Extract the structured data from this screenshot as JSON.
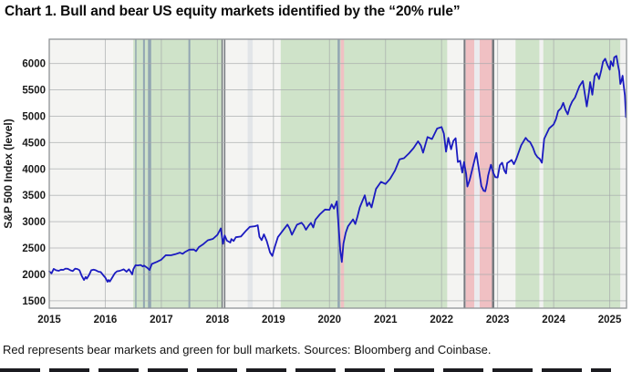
{
  "header": {
    "title": "Chart 1. Bull and bear US equity markets identified by the “20% rule”"
  },
  "footer": {
    "caption": "Red represents bear markets and green for bull markets. Sources: Bloomberg and Coinbase."
  },
  "chart_data": {
    "type": "line",
    "title": "Chart 1. Bull and bear US equity markets identified by the “20% rule”",
    "xlabel": "",
    "ylabel": "S&P 500 Index (level)",
    "x_ticks": [
      2015,
      2016,
      2017,
      2018,
      2019,
      2020,
      2021,
      2022,
      2023,
      2024,
      2025
    ],
    "y_ticks": [
      1500,
      2000,
      2500,
      3000,
      3500,
      4000,
      4500,
      5000,
      5500,
      6000
    ],
    "xlim": [
      2015,
      2025.3
    ],
    "ylim": [
      1360,
      6460
    ],
    "grid": true,
    "legend": "none",
    "colors": {
      "bull_band": "#cfe3c9",
      "bear_band": "#f0c0c3",
      "plot_background": "#f4f4f2",
      "grid_line": "#a3a7a9",
      "border": "#8f9396",
      "series_line": "#1b1bc0",
      "bluegrey_line": "#8296ad",
      "dark_line": "#5f646b"
    },
    "regions": {
      "bull_label": "bull market (green)",
      "bear_label": "bear market (red)",
      "bull": [
        [
          2016.5,
          2018.08
        ],
        [
          2019.13,
          2022.1
        ],
        [
          2023.32,
          2025.19
        ]
      ],
      "bear": [
        [
          2020.2,
          2020.26
        ],
        [
          2022.43,
          2022.585
        ],
        [
          2022.68,
          2022.9
        ]
      ]
    },
    "overlays": {
      "grey_bands": [
        {
          "x": [
            2018.54,
            2018.63
          ],
          "color": "#e2e5e8"
        },
        {
          "x": [
            2022.585,
            2022.68
          ],
          "color": "#ebebee"
        },
        {
          "x": [
            2023.745,
            2023.815
          ],
          "color": "#f2f2f1"
        },
        {
          "x": [
            2025.19,
            2025.3
          ],
          "color": "#f2f2f1"
        }
      ],
      "bluegrey_lines": [
        {
          "x": 2016.545,
          "w": 1.5
        },
        {
          "x": 2016.69,
          "w": 2
        },
        {
          "x": 2016.79,
          "w": 3.5
        },
        {
          "x": 2017.5,
          "w": 2
        },
        {
          "x": 2020.165,
          "w": 2.5
        }
      ],
      "dark_lines": [
        {
          "x": 2018.085,
          "w": 1.5
        },
        {
          "x": 2018.13,
          "w": 1.5
        },
        {
          "x": 2022.41,
          "w": 2
        },
        {
          "x": 2022.92,
          "w": 2.5
        }
      ]
    },
    "series": [
      {
        "name": "S&P 500",
        "points": [
          [
            2015.0,
            2058
          ],
          [
            2015.04,
            2020
          ],
          [
            2015.08,
            2105
          ],
          [
            2015.12,
            2080
          ],
          [
            2015.17,
            2068
          ],
          [
            2015.21,
            2090
          ],
          [
            2015.25,
            2086
          ],
          [
            2015.29,
            2110
          ],
          [
            2015.33,
            2107
          ],
          [
            2015.38,
            2077
          ],
          [
            2015.42,
            2063
          ],
          [
            2015.46,
            2108
          ],
          [
            2015.5,
            2104
          ],
          [
            2015.54,
            2080
          ],
          [
            2015.58,
            1972
          ],
          [
            2015.62,
            1894
          ],
          [
            2015.65,
            1952
          ],
          [
            2015.67,
            1920
          ],
          [
            2015.71,
            1988
          ],
          [
            2015.75,
            2079
          ],
          [
            2015.79,
            2090
          ],
          [
            2015.83,
            2080
          ],
          [
            2015.88,
            2052
          ],
          [
            2015.92,
            2044
          ],
          [
            2015.96,
            1990
          ],
          [
            2016.0,
            1940
          ],
          [
            2016.04,
            1859
          ],
          [
            2016.06,
            1895
          ],
          [
            2016.08,
            1865
          ],
          [
            2016.12,
            1932
          ],
          [
            2016.17,
            2022
          ],
          [
            2016.21,
            2060
          ],
          [
            2016.25,
            2065
          ],
          [
            2016.29,
            2081
          ],
          [
            2016.33,
            2096
          ],
          [
            2016.38,
            2052
          ],
          [
            2016.42,
            2099
          ],
          [
            2016.46,
            2037
          ],
          [
            2016.48,
            2000
          ],
          [
            2016.5,
            2099
          ],
          [
            2016.54,
            2174
          ],
          [
            2016.58,
            2171
          ],
          [
            2016.63,
            2180
          ],
          [
            2016.67,
            2151
          ],
          [
            2016.69,
            2168
          ],
          [
            2016.75,
            2126
          ],
          [
            2016.79,
            2085
          ],
          [
            2016.83,
            2199
          ],
          [
            2016.92,
            2239
          ],
          [
            2017.0,
            2279
          ],
          [
            2017.08,
            2364
          ],
          [
            2017.17,
            2363
          ],
          [
            2017.25,
            2384
          ],
          [
            2017.33,
            2412
          ],
          [
            2017.38,
            2390
          ],
          [
            2017.42,
            2423
          ],
          [
            2017.5,
            2470
          ],
          [
            2017.58,
            2472
          ],
          [
            2017.62,
            2440
          ],
          [
            2017.67,
            2519
          ],
          [
            2017.75,
            2575
          ],
          [
            2017.83,
            2648
          ],
          [
            2017.92,
            2674
          ],
          [
            2018.0,
            2750
          ],
          [
            2018.06,
            2873
          ],
          [
            2018.1,
            2581
          ],
          [
            2018.13,
            2740
          ],
          [
            2018.17,
            2641
          ],
          [
            2018.23,
            2605
          ],
          [
            2018.25,
            2670
          ],
          [
            2018.29,
            2635
          ],
          [
            2018.33,
            2705
          ],
          [
            2018.42,
            2718
          ],
          [
            2018.5,
            2816
          ],
          [
            2018.58,
            2902
          ],
          [
            2018.67,
            2914
          ],
          [
            2018.72,
            2931
          ],
          [
            2018.75,
            2712
          ],
          [
            2018.79,
            2650
          ],
          [
            2018.83,
            2760
          ],
          [
            2018.88,
            2633
          ],
          [
            2018.94,
            2416
          ],
          [
            2018.98,
            2351
          ],
          [
            2019.02,
            2510
          ],
          [
            2019.08,
            2706
          ],
          [
            2019.17,
            2834
          ],
          [
            2019.25,
            2946
          ],
          [
            2019.29,
            2870
          ],
          [
            2019.33,
            2752
          ],
          [
            2019.42,
            2942
          ],
          [
            2019.5,
            2980
          ],
          [
            2019.54,
            2932
          ],
          [
            2019.58,
            2847
          ],
          [
            2019.63,
            2926
          ],
          [
            2019.67,
            2977
          ],
          [
            2019.71,
            2890
          ],
          [
            2019.75,
            3038
          ],
          [
            2019.83,
            3141
          ],
          [
            2019.92,
            3231
          ],
          [
            2020.0,
            3226
          ],
          [
            2020.04,
            3327
          ],
          [
            2020.08,
            3248
          ],
          [
            2020.13,
            3386
          ],
          [
            2020.16,
            2954
          ],
          [
            2020.19,
            2480
          ],
          [
            2020.22,
            2237
          ],
          [
            2020.25,
            2585
          ],
          [
            2020.29,
            2790
          ],
          [
            2020.33,
            2912
          ],
          [
            2020.42,
            3044
          ],
          [
            2020.46,
            2955
          ],
          [
            2020.5,
            3100
          ],
          [
            2020.54,
            3271
          ],
          [
            2020.58,
            3373
          ],
          [
            2020.63,
            3500
          ],
          [
            2020.67,
            3298
          ],
          [
            2020.71,
            3363
          ],
          [
            2020.75,
            3270
          ],
          [
            2020.79,
            3443
          ],
          [
            2020.83,
            3622
          ],
          [
            2020.92,
            3756
          ],
          [
            2021.0,
            3714
          ],
          [
            2021.08,
            3811
          ],
          [
            2021.17,
            3973
          ],
          [
            2021.25,
            4181
          ],
          [
            2021.33,
            4204
          ],
          [
            2021.42,
            4298
          ],
          [
            2021.5,
            4395
          ],
          [
            2021.58,
            4523
          ],
          [
            2021.63,
            4444
          ],
          [
            2021.67,
            4308
          ],
          [
            2021.75,
            4605
          ],
          [
            2021.83,
            4567
          ],
          [
            2021.92,
            4766
          ],
          [
            2022.0,
            4796
          ],
          [
            2022.04,
            4670
          ],
          [
            2022.08,
            4326
          ],
          [
            2022.12,
            4589
          ],
          [
            2022.17,
            4374
          ],
          [
            2022.21,
            4530
          ],
          [
            2022.25,
            4583
          ],
          [
            2022.29,
            4132
          ],
          [
            2022.33,
            4155
          ],
          [
            2022.37,
            3930
          ],
          [
            2022.4,
            4132
          ],
          [
            2022.44,
            3900
          ],
          [
            2022.46,
            3667
          ],
          [
            2022.5,
            3785
          ],
          [
            2022.54,
            3960
          ],
          [
            2022.58,
            4130
          ],
          [
            2022.62,
            4305
          ],
          [
            2022.67,
            3955
          ],
          [
            2022.71,
            3678
          ],
          [
            2022.75,
            3585
          ],
          [
            2022.78,
            3577
          ],
          [
            2022.81,
            3730
          ],
          [
            2022.83,
            3872
          ],
          [
            2022.88,
            4080
          ],
          [
            2022.92,
            3934
          ],
          [
            2022.96,
            3844
          ],
          [
            2023.0,
            3839
          ],
          [
            2023.04,
            4070
          ],
          [
            2023.08,
            4119
          ],
          [
            2023.12,
            3970
          ],
          [
            2023.15,
            3916
          ],
          [
            2023.17,
            4109
          ],
          [
            2023.25,
            4169
          ],
          [
            2023.29,
            4090
          ],
          [
            2023.33,
            4180
          ],
          [
            2023.42,
            4450
          ],
          [
            2023.5,
            4589
          ],
          [
            2023.54,
            4537
          ],
          [
            2023.58,
            4508
          ],
          [
            2023.63,
            4405
          ],
          [
            2023.67,
            4288
          ],
          [
            2023.71,
            4224
          ],
          [
            2023.75,
            4194
          ],
          [
            2023.79,
            4117
          ],
          [
            2023.83,
            4568
          ],
          [
            2023.92,
            4770
          ],
          [
            2024.0,
            4846
          ],
          [
            2024.04,
            4942
          ],
          [
            2024.08,
            5096
          ],
          [
            2024.13,
            5150
          ],
          [
            2024.17,
            5254
          ],
          [
            2024.21,
            5123
          ],
          [
            2024.25,
            5036
          ],
          [
            2024.29,
            5180
          ],
          [
            2024.33,
            5278
          ],
          [
            2024.38,
            5354
          ],
          [
            2024.42,
            5460
          ],
          [
            2024.46,
            5570
          ],
          [
            2024.52,
            5667
          ],
          [
            2024.56,
            5399
          ],
          [
            2024.59,
            5186
          ],
          [
            2024.63,
            5455
          ],
          [
            2024.65,
            5648
          ],
          [
            2024.69,
            5408
          ],
          [
            2024.73,
            5762
          ],
          [
            2024.77,
            5815
          ],
          [
            2024.81,
            5705
          ],
          [
            2024.85,
            5870
          ],
          [
            2024.88,
            6032
          ],
          [
            2024.92,
            6090
          ],
          [
            2024.96,
            5970
          ],
          [
            2025.0,
            5882
          ],
          [
            2025.02,
            6041
          ],
          [
            2025.06,
            5950
          ],
          [
            2025.08,
            6115
          ],
          [
            2025.12,
            6144
          ],
          [
            2025.15,
            5955
          ],
          [
            2025.17,
            5850
          ],
          [
            2025.19,
            5612
          ],
          [
            2025.21,
            5675
          ],
          [
            2025.23,
            5767
          ],
          [
            2025.25,
            5580
          ],
          [
            2025.27,
            5396
          ],
          [
            2025.29,
            4983
          ]
        ]
      }
    ]
  }
}
